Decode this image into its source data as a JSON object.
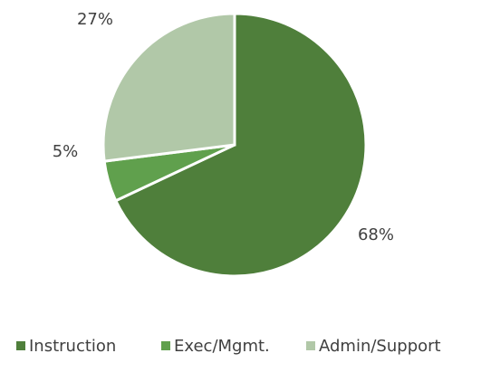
{
  "chart_data": {
    "type": "pie",
    "categories": [
      "Instruction",
      "Exec/Mgmt.",
      "Admin/Support"
    ],
    "values": [
      68,
      5,
      27
    ],
    "value_labels": [
      "68%",
      "5%",
      "27%"
    ],
    "colors": [
      "#4f7f3b",
      "#60a04d",
      "#b1c8a8"
    ],
    "legend": "bottom"
  }
}
